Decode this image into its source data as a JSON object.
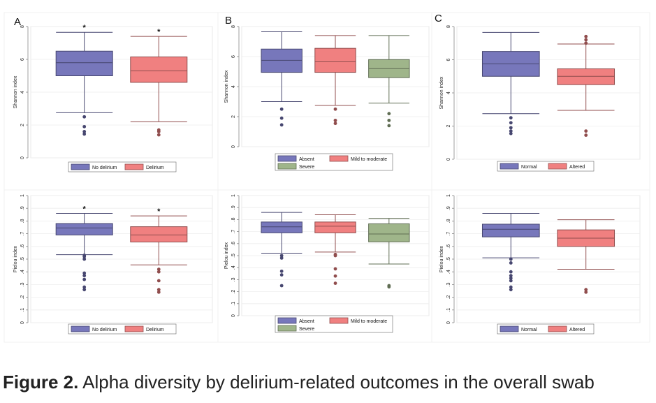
{
  "figure": {
    "caption_label": "Figure 2.",
    "caption_text": " Alpha diversity by delirium-related outcomes in the overall swab"
  },
  "chart_data": [
    {
      "type": "box",
      "panel_letter": "A",
      "ylabel": "Shannon index",
      "ylim": [
        0,
        8
      ],
      "yticks": [
        0,
        2,
        4,
        6,
        8
      ],
      "ytick_labels": [
        "0",
        "2",
        "4",
        "6",
        "8"
      ],
      "legend": [
        "No delirium",
        "Delirium"
      ],
      "series": [
        {
          "name": "No delirium",
          "color": "#7777BB",
          "min": 2.75,
          "q1": 5.0,
          "median": 5.8,
          "q3": 6.5,
          "max": 7.65,
          "outliers": [
            2.5,
            1.9,
            1.6,
            1.45
          ],
          "annotation": "*"
        },
        {
          "name": "Delirium",
          "color": "#F08080",
          "min": 2.2,
          "q1": 4.6,
          "median": 5.3,
          "q3": 6.15,
          "max": 7.4,
          "outliers": [
            1.7,
            1.6,
            1.4
          ],
          "annotation": "*"
        }
      ]
    },
    {
      "type": "box",
      "panel_letter": "B",
      "ylabel": "Shannon index",
      "ylim": [
        0,
        8
      ],
      "yticks": [
        0,
        2,
        4,
        6,
        8
      ],
      "ytick_labels": [
        "0",
        "2",
        "4",
        "6",
        "8"
      ],
      "legend": [
        "Absent",
        "Mild to moderate",
        "Severe"
      ],
      "series": [
        {
          "name": "Absent",
          "color": "#7777BB",
          "min": 3.0,
          "q1": 4.95,
          "median": 5.75,
          "q3": 6.5,
          "max": 7.65,
          "outliers": [
            2.5,
            1.9,
            1.45
          ]
        },
        {
          "name": "Mild to moderate",
          "color": "#F08080",
          "min": 2.75,
          "q1": 4.95,
          "median": 5.65,
          "q3": 6.55,
          "max": 7.4,
          "outliers": [
            2.5,
            1.75,
            1.55
          ]
        },
        {
          "name": "Severe",
          "color": "#9FB58A",
          "min": 2.9,
          "q1": 4.6,
          "median": 5.2,
          "q3": 5.8,
          "max": 7.4,
          "outliers": [
            2.2,
            1.75,
            1.4
          ]
        }
      ]
    },
    {
      "type": "box",
      "panel_letter": "C",
      "ylabel": "Shannon index",
      "ylim": [
        0,
        8
      ],
      "yticks": [
        0,
        2,
        4,
        6,
        8
      ],
      "ytick_labels": [
        "0",
        "2",
        "4",
        "6",
        "8"
      ],
      "legend": [
        "Normal",
        "Altered"
      ],
      "series": [
        {
          "name": "Normal",
          "color": "#7777BB",
          "min": 2.75,
          "q1": 5.0,
          "median": 5.75,
          "q3": 6.5,
          "max": 7.65,
          "outliers": [
            2.5,
            2.2,
            1.9,
            1.7,
            1.55
          ]
        },
        {
          "name": "Altered",
          "color": "#F08080",
          "min": 2.95,
          "q1": 4.5,
          "median": 5.0,
          "q3": 5.45,
          "max": 6.95,
          "outliers": [
            7.4,
            7.2,
            7.0,
            1.7,
            1.45
          ]
        }
      ]
    },
    {
      "type": "box",
      "panel_letter": "",
      "ylabel": "Pielou index",
      "ylim": [
        0,
        1
      ],
      "yticks": [
        0,
        0.1,
        0.2,
        0.3,
        0.4,
        0.5,
        0.6,
        0.7,
        0.8,
        0.9,
        1.0
      ],
      "ytick_labels": [
        "0",
        ".1",
        ".2",
        ".3",
        ".4",
        ".5",
        ".6",
        ".7",
        ".8",
        ".9",
        "1"
      ],
      "legend": [
        "No delirium",
        "Delirium"
      ],
      "series": [
        {
          "name": "No delirium",
          "color": "#7777BB",
          "min": 0.535,
          "q1": 0.69,
          "median": 0.745,
          "q3": 0.78,
          "max": 0.86,
          "outliers": [
            0.53,
            0.52,
            0.5,
            0.39,
            0.37,
            0.34,
            0.28,
            0.26
          ],
          "annotation": "*"
        },
        {
          "name": "Delirium",
          "color": "#F08080",
          "min": 0.455,
          "q1": 0.635,
          "median": 0.69,
          "q3": 0.755,
          "max": 0.84,
          "outliers": [
            0.42,
            0.4,
            0.33,
            0.26,
            0.24
          ],
          "annotation": "*"
        }
      ]
    },
    {
      "type": "box",
      "panel_letter": "",
      "ylabel": "Pielou index",
      "ylim": [
        0,
        1
      ],
      "yticks": [
        0,
        0.1,
        0.2,
        0.3,
        0.4,
        0.5,
        0.6,
        0.7,
        0.8,
        0.9,
        1.0
      ],
      "ytick_labels": [
        "0",
        ".1",
        ".2",
        ".3",
        ".4",
        ".5",
        ".6",
        ".7",
        ".8",
        ".9",
        "1"
      ],
      "legend": [
        "Absent",
        "Mild to moderate",
        "Severe"
      ],
      "series": [
        {
          "name": "Absent",
          "color": "#7777BB",
          "min": 0.52,
          "q1": 0.69,
          "median": 0.74,
          "q3": 0.78,
          "max": 0.86,
          "outliers": [
            0.5,
            0.48,
            0.37,
            0.34,
            0.25
          ]
        },
        {
          "name": "Mild to moderate",
          "color": "#F08080",
          "min": 0.53,
          "q1": 0.69,
          "median": 0.745,
          "q3": 0.78,
          "max": 0.84,
          "outliers": [
            0.51,
            0.5,
            0.39,
            0.33,
            0.27
          ]
        },
        {
          "name": "Severe",
          "color": "#9FB58A",
          "min": 0.43,
          "q1": 0.615,
          "median": 0.68,
          "q3": 0.765,
          "max": 0.81,
          "outliers": [
            0.25,
            0.24
          ]
        }
      ]
    },
    {
      "type": "box",
      "panel_letter": "",
      "ylabel": "Pielou index",
      "ylim": [
        0,
        1
      ],
      "yticks": [
        0,
        0.1,
        0.2,
        0.3,
        0.4,
        0.5,
        0.6,
        0.7,
        0.8,
        0.9,
        1.0
      ],
      "ytick_labels": [
        "0",
        ".1",
        ".2",
        ".3",
        ".4",
        ".5",
        ".6",
        ".7",
        ".8",
        ".9",
        "1"
      ],
      "legend": [
        "Normal",
        "Altered"
      ],
      "series": [
        {
          "name": "Normal",
          "color": "#7777BB",
          "min": 0.51,
          "q1": 0.675,
          "median": 0.735,
          "q3": 0.775,
          "max": 0.86,
          "outliers": [
            0.5,
            0.47,
            0.4,
            0.37,
            0.35,
            0.33,
            0.28,
            0.26
          ]
        },
        {
          "name": "Altered",
          "color": "#F08080",
          "min": 0.42,
          "q1": 0.6,
          "median": 0.665,
          "q3": 0.73,
          "max": 0.81,
          "outliers": [
            0.26,
            0.24
          ]
        }
      ]
    }
  ]
}
